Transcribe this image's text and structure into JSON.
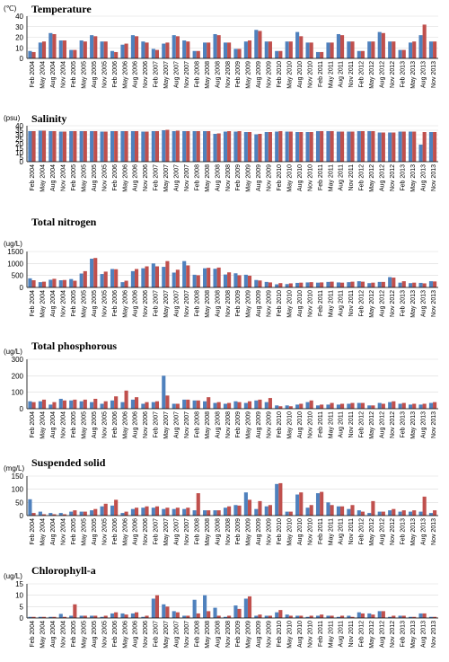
{
  "colors": {
    "series_a": "#4f81bd",
    "series_b": "#c0504d",
    "grid": "#d9d9d9",
    "axis": "#000000"
  },
  "chart_data": [
    {
      "type": "bar",
      "title": "Temperature",
      "ylabel": "(℃)",
      "ylim": [
        0,
        40
      ],
      "yticks": [
        0,
        10,
        20,
        30,
        40
      ],
      "categories": [
        "Feb 2004",
        "May 2004",
        "Aug 2004",
        "Nov 2004",
        "Feb 2005",
        "May 2005",
        "Aug 2005",
        "Nov 2005",
        "Feb 2006",
        "May 2006",
        "Aug 2006",
        "Nov 2006",
        "Feb 2007",
        "May 2007",
        "Aug 2007",
        "Nov 2007",
        "Feb 2008",
        "May 2008",
        "Aug 2008",
        "Nov 2008",
        "Feb 2009",
        "May 2009",
        "Aug 2009",
        "Nov 2009",
        "Feb 2010",
        "May 2010",
        "Aug 2010",
        "Nov 2010",
        "Feb 2011",
        "May 2011",
        "Aug 2011",
        "Nov 2011",
        "Feb 2012",
        "May 2012",
        "Aug 2012",
        "Nov 2012",
        "Feb 2013",
        "May 2013",
        "Aug 2013",
        "Nov 2013"
      ],
      "series": [
        {
          "values": [
            7,
            15,
            24,
            17,
            8,
            17,
            22,
            16,
            7,
            13,
            22,
            16,
            9,
            14,
            22,
            17,
            7,
            15,
            23,
            15,
            9,
            16,
            27,
            16,
            7,
            16,
            25,
            15,
            6,
            15,
            23,
            16,
            7,
            16,
            25,
            16,
            8,
            15,
            22,
            16
          ]
        },
        {
          "values": [
            6,
            16,
            23,
            17,
            8,
            16,
            21,
            16,
            6,
            14,
            21,
            15,
            8,
            15,
            21,
            16,
            7,
            15,
            22,
            15,
            9,
            17,
            26,
            16,
            7,
            16,
            21,
            15,
            6,
            15,
            22,
            16,
            7,
            16,
            24,
            16,
            8,
            16,
            32,
            16
          ]
        }
      ]
    },
    {
      "type": "bar",
      "title": "Salinity",
      "ylabel": "(psu)",
      "ylim": [
        0,
        40
      ],
      "yticks": [
        0,
        5,
        10,
        15,
        20,
        25,
        30,
        35,
        40
      ],
      "categories": [
        "Feb 2004",
        "May 2004",
        "Aug 2004",
        "Nov 2004",
        "Feb 2005",
        "May 2005",
        "Aug 2005",
        "Nov 2005",
        "Feb 2006",
        "May 2006",
        "Aug 2006",
        "Nov 2006",
        "Feb 2007",
        "May 2007",
        "Aug 2007",
        "Nov 2007",
        "Feb 2008",
        "May 2008",
        "Aug 2008",
        "Nov 2008",
        "Feb 2009",
        "May 2009",
        "Aug 2009",
        "Nov 2009",
        "Feb 2010",
        "May 2010",
        "Aug 2010",
        "Nov 2010",
        "Feb 2011",
        "May 2011",
        "Aug 2011",
        "Nov 2011",
        "Feb 2012",
        "May 2012",
        "Aug 2012",
        "Nov 2012",
        "Feb 2013",
        "May 2013",
        "Aug 2013",
        "Nov 2013"
      ],
      "series": [
        {
          "values": [
            34,
            34.5,
            34,
            33.5,
            34,
            34,
            34,
            33.5,
            34,
            34,
            34,
            33.5,
            34,
            35,
            34,
            34,
            34,
            34,
            31,
            33.5,
            33.5,
            33,
            30.5,
            33,
            33.5,
            33.5,
            33,
            33,
            34,
            34,
            33.5,
            33.5,
            34,
            34,
            32.5,
            32.5,
            33.5,
            33.5,
            19,
            33
          ]
        },
        {
          "values": [
            34,
            34.5,
            34,
            33.5,
            34,
            34,
            34,
            33.5,
            34,
            34,
            34,
            33.5,
            34,
            35.5,
            34.5,
            34,
            34,
            34,
            31.5,
            34,
            34,
            33,
            31,
            33,
            34,
            33.5,
            33,
            33,
            34,
            34,
            33.5,
            33.5,
            34,
            34,
            32.5,
            32.5,
            33.5,
            33.5,
            33,
            33
          ]
        }
      ]
    },
    {
      "type": "bar",
      "title": "Total nitrogen",
      "ylabel": "(ug/L)",
      "ylim": [
        0,
        1500
      ],
      "yticks": [
        0,
        500,
        1000,
        1500
      ],
      "categories": [
        "Feb 2004",
        "May 2004",
        "Aug 2004",
        "Nov 2004",
        "Feb 2005",
        "May 2005",
        "Aug 2005",
        "Nov 2005",
        "Feb 2006",
        "May 2006",
        "Aug 2006",
        "Nov 2006",
        "Feb 2007",
        "May 2007",
        "Aug 2007",
        "Nov 2007",
        "Feb 2008",
        "May 2008",
        "Aug 2008",
        "Nov 2008",
        "Feb 2009",
        "May 2009",
        "Aug 2009",
        "Nov 2009",
        "Feb 2010",
        "May 2010",
        "Aug 2010",
        "Nov 2010",
        "Feb 2011",
        "May 2011",
        "Aug 2011",
        "Nov 2011",
        "Feb 2012",
        "May 2012",
        "Aug 2012",
        "Nov 2012",
        "Feb 2013",
        "May 2013",
        "Aug 2013",
        "Nov 2013"
      ],
      "series": [
        {
          "values": [
            380,
            220,
            320,
            300,
            350,
            580,
            1200,
            560,
            770,
            220,
            680,
            800,
            1000,
            860,
            620,
            1100,
            530,
            800,
            780,
            540,
            590,
            530,
            310,
            230,
            130,
            140,
            190,
            210,
            200,
            230,
            210,
            220,
            260,
            180,
            230,
            430,
            200,
            180,
            190,
            260
          ]
        },
        {
          "values": [
            300,
            240,
            360,
            310,
            280,
            680,
            1230,
            660,
            760,
            280,
            770,
            880,
            880,
            1100,
            740,
            920,
            510,
            820,
            830,
            630,
            510,
            490,
            290,
            210,
            180,
            170,
            200,
            220,
            210,
            240,
            200,
            240,
            240,
            200,
            230,
            410,
            260,
            200,
            170,
            250
          ]
        }
      ]
    },
    {
      "type": "bar",
      "title": "Total phosphorous",
      "ylabel": "(ug/L)",
      "ylim": [
        0,
        300
      ],
      "yticks": [
        0,
        100,
        200,
        300
      ],
      "categories": [
        "Feb 2004",
        "May 2004",
        "Aug 2004",
        "Nov 2004",
        "Feb 2005",
        "May 2005",
        "Aug 2005",
        "Nov 2005",
        "Feb 2006",
        "May 2006",
        "Aug 2006",
        "Nov 2006",
        "Feb 2007",
        "May 2007",
        "Aug 2007",
        "Nov 2007",
        "Feb 2008",
        "May 2008",
        "Aug 2008",
        "Nov 2008",
        "Feb 2009",
        "May 2009",
        "Aug 2009",
        "Nov 2009",
        "Feb 2010",
        "May 2010",
        "Aug 2010",
        "Nov 2010",
        "Feb 2011",
        "May 2011",
        "Aug 2011",
        "Nov 2011",
        "Feb 2012",
        "May 2012",
        "Aug 2012",
        "Nov 2012",
        "Feb 2013",
        "May 2013",
        "Aug 2013",
        "Nov 2013"
      ],
      "series": [
        {
          "values": [
            45,
            45,
            25,
            60,
            50,
            45,
            40,
            30,
            50,
            40,
            55,
            30,
            40,
            200,
            30,
            55,
            50,
            45,
            35,
            30,
            45,
            35,
            50,
            40,
            20,
            20,
            25,
            40,
            20,
            25,
            25,
            30,
            35,
            20,
            35,
            40,
            30,
            25,
            25,
            35
          ]
        },
        {
          "values": [
            40,
            55,
            40,
            50,
            55,
            55,
            60,
            45,
            75,
            110,
            70,
            40,
            45,
            80,
            30,
            55,
            50,
            70,
            40,
            35,
            40,
            45,
            55,
            65,
            15,
            15,
            30,
            50,
            25,
            35,
            30,
            35,
            35,
            20,
            30,
            45,
            35,
            30,
            30,
            40
          ]
        }
      ]
    },
    {
      "type": "bar",
      "title": "Suspended solid",
      "ylabel": "(mg/L)",
      "ylim": [
        0,
        150
      ],
      "yticks": [
        0,
        50,
        100,
        150
      ],
      "categories": [
        "Feb 2004",
        "May 2004",
        "Aug 2004",
        "Nov 2004",
        "Feb 2005",
        "May 2005",
        "Aug 2005",
        "Nov 2005",
        "Feb 2006",
        "May 2006",
        "Aug 2006",
        "Nov 2006",
        "Feb 2007",
        "May 2007",
        "Aug 2007",
        "Nov 2007",
        "Feb 2008",
        "May 2008",
        "Aug 2008",
        "Nov 2008",
        "Feb 2009",
        "May 2009",
        "Aug 2009",
        "Nov 2009",
        "Feb 2010",
        "May 2010",
        "Aug 2010",
        "Nov 2010",
        "Feb 2011",
        "May 2011",
        "Aug 2011",
        "Nov 2011",
        "Feb 2012",
        "May 2012",
        "Aug 2012",
        "Nov 2012",
        "Feb 2013",
        "May 2013",
        "Aug 2013",
        "Nov 2013"
      ],
      "series": [
        {
          "values": [
            62,
            15,
            10,
            10,
            15,
            15,
            20,
            35,
            38,
            10,
            25,
            30,
            30,
            25,
            25,
            25,
            20,
            20,
            20,
            30,
            40,
            88,
            25,
            35,
            120,
            15,
            80,
            30,
            85,
            50,
            35,
            25,
            20,
            10,
            15,
            20,
            15,
            15,
            15,
            10
          ]
        },
        {
          "values": [
            10,
            5,
            5,
            5,
            20,
            15,
            25,
            45,
            60,
            15,
            30,
            35,
            35,
            30,
            30,
            30,
            85,
            20,
            20,
            35,
            38,
            60,
            55,
            40,
            123,
            15,
            88,
            40,
            90,
            40,
            35,
            40,
            15,
            55,
            15,
            25,
            20,
            20,
            72,
            20
          ]
        }
      ]
    },
    {
      "type": "bar",
      "title": "Chlorophyll-a",
      "ylabel": "(ug/L)",
      "ylim": [
        0,
        15
      ],
      "yticks": [
        0,
        5,
        10,
        15
      ],
      "categories": [
        "Feb 2004",
        "May 2004",
        "Aug 2004",
        "Nov 2004",
        "Feb 2005",
        "May 2005",
        "Aug 2005",
        "Nov 2005",
        "Feb 2006",
        "May 2006",
        "Aug 2006",
        "Nov 2006",
        "Feb 2007",
        "May 2007",
        "Aug 2007",
        "Nov 2007",
        "Feb 2008",
        "May 2008",
        "Aug 2008",
        "Nov 2008",
        "Feb 2009",
        "May 2009",
        "Aug 2009",
        "Nov 2009",
        "Feb 2010",
        "May 2010",
        "Aug 2010",
        "Nov 2010",
        "Feb 2011",
        "May 2011",
        "Aug 2011",
        "Nov 2011",
        "Feb 2012",
        "May 2012",
        "Aug 2012",
        "Nov 2012",
        "Feb 2013",
        "May 2013",
        "Aug 2013",
        "Nov 2013"
      ],
      "series": [
        {
          "values": [
            0.5,
            0.5,
            0.5,
            1.8,
            1,
            1,
            1,
            0.5,
            2,
            2,
            2,
            0.5,
            8.5,
            6,
            3,
            1,
            8,
            10,
            4.5,
            0.5,
            5.5,
            8.5,
            1,
            1,
            2.5,
            1.5,
            1,
            0.5,
            1,
            1,
            0.5,
            1,
            2.5,
            2,
            3,
            0.5,
            1,
            0.5,
            2,
            0.5
          ]
        },
        {
          "values": [
            0.5,
            0.5,
            0.5,
            0.5,
            6,
            1,
            1,
            1,
            2.5,
            1.5,
            2.5,
            1,
            10,
            5,
            2.5,
            1,
            2,
            3,
            1,
            1,
            4,
            9.5,
            1.5,
            1,
            3.5,
            1,
            1,
            1,
            1.5,
            1,
            1,
            0.5,
            2,
            1.5,
            3,
            1,
            1,
            0.5,
            2,
            0.5
          ]
        }
      ]
    }
  ]
}
